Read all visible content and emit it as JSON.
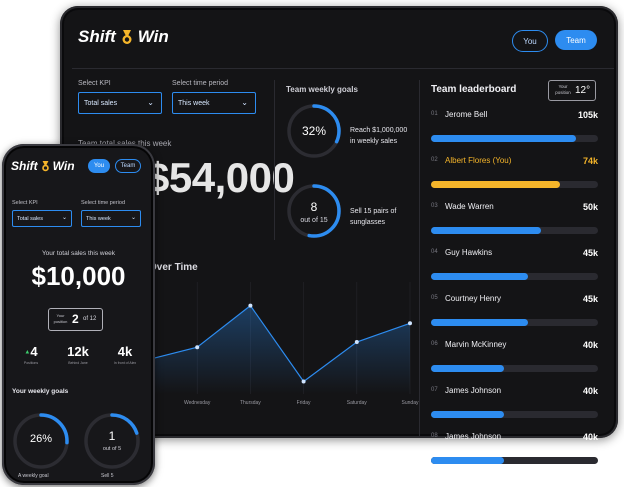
{
  "brand": {
    "name_left": "Shift",
    "name_right": "Win"
  },
  "colors": {
    "accent": "#2d8cf0",
    "highlight": "#f5b52a",
    "background": "#141416"
  },
  "tablet": {
    "toggle": {
      "you_label": "You",
      "team_label": "Team",
      "active": "Team"
    },
    "kpi": {
      "label": "Select KPI",
      "value": "Total sales"
    },
    "period": {
      "label": "Select time period",
      "value": "This week"
    },
    "total_title": "Team total sales this week",
    "total_value": "$54,000",
    "goals": {
      "title": "Team weekly goals",
      "items": [
        {
          "ring_main": "32%",
          "ring_sub": "",
          "progress": 0.32,
          "text_line1": "Reach $1,000,000",
          "text_line2": "in weekly sales"
        },
        {
          "ring_main": "8",
          "ring_sub": "out of 15",
          "progress": 0.53,
          "text_line1": "Sell 15 pairs of",
          "text_line2": "sunglasses"
        }
      ]
    },
    "leaderboard": {
      "title": "Team leaderboard",
      "position_label": "Your position",
      "position_value": "12°",
      "rows": [
        {
          "rank": "01",
          "name": "Jerome Bell",
          "value": "105k",
          "progress": 0.87,
          "highlight": false
        },
        {
          "rank": "02",
          "name": "Albert Flores (You)",
          "value": "74k",
          "progress": 0.77,
          "highlight": true
        },
        {
          "rank": "03",
          "name": "Wade Warren",
          "value": "50k",
          "progress": 0.66,
          "highlight": false
        },
        {
          "rank": "04",
          "name": "Guy Hawkins",
          "value": "45k",
          "progress": 0.58,
          "highlight": false
        },
        {
          "rank": "05",
          "name": "Courtney Henry",
          "value": "45k",
          "progress": 0.58,
          "highlight": false
        },
        {
          "rank": "06",
          "name": "Marvin McKinney",
          "value": "40k",
          "progress": 0.44,
          "highlight": false
        },
        {
          "rank": "07",
          "name": "James Johnson",
          "value": "40k",
          "progress": 0.44,
          "highlight": false
        },
        {
          "rank": "08",
          "name": "James Johnson",
          "value": "40k",
          "progress": 0.44,
          "highlight": false
        }
      ]
    },
    "chart": {
      "title_visible": "Over Time",
      "days": [
        "Wednesday",
        "Thursday",
        "Friday",
        "Saturday",
        "Sunday"
      ]
    }
  },
  "phone": {
    "toggle": {
      "you_label": "You",
      "team_label": "Team",
      "active": "You"
    },
    "kpi": {
      "label": "Select KPI",
      "value": "Total sales"
    },
    "period": {
      "label": "Select time period",
      "value": "This week"
    },
    "total_title": "Your total sales this week",
    "total_value": "$10,000",
    "position": {
      "label": "Your position",
      "value": "2",
      "of": "of 12"
    },
    "stats": [
      {
        "value": "4",
        "label": "Positions",
        "arrow": "▲"
      },
      {
        "value": "12k",
        "label": "Behind Jane",
        "arrow": ""
      },
      {
        "value": "4k",
        "label": "In front of Alex",
        "arrow": ""
      }
    ],
    "goals_title": "Your weekly goals",
    "goals": [
      {
        "ring_main": "26%",
        "ring_sub": "",
        "progress": 0.26,
        "caption": "A weekly goal"
      },
      {
        "ring_main": "1",
        "ring_sub": "out of 5",
        "progress": 0.2,
        "caption": "Sell 5"
      }
    ]
  },
  "chart_data": {
    "type": "line",
    "title": "Over Time",
    "categories": [
      "",
      "Wednesday",
      "Thursday",
      "Friday",
      "Saturday",
      "Sunday"
    ],
    "series": [
      {
        "values": [
          null,
          0.45,
          0.85,
          0.12,
          0.5,
          0.68
        ]
      }
    ]
  }
}
